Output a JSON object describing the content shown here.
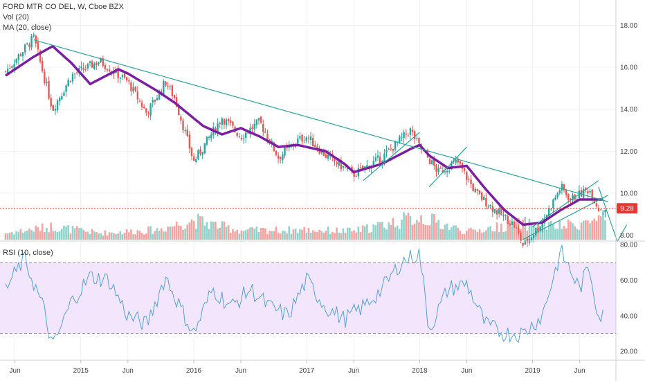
{
  "chart_data": {
    "type": "candlestick",
    "symbol_label": "FORD MTR CO DEL, W, Cboe BZX",
    "indicator_labels": [
      "Vol (20)",
      "MA (20, close)"
    ],
    "rsi_label": "RSI (10, close)",
    "x_tick_labels": [
      "Jun",
      "2015",
      "Jun",
      "2016",
      "Jun",
      "2017",
      "Jun",
      "2018",
      "Jun",
      "2019",
      "Jun"
    ],
    "price_axis": {
      "ticks": [
        "8.00",
        "10.00",
        "12.00",
        "14.00",
        "16.00",
        "18.00"
      ],
      "range": [
        6.5,
        19.2
      ]
    },
    "rsi_axis": {
      "ticks": [
        "20.00",
        "40.00",
        "60.00",
        "80.00"
      ],
      "range": [
        15,
        82
      ],
      "band": [
        30,
        70
      ]
    },
    "last_price_label": "9.28",
    "last_price": 9.28,
    "ma_anchor_points": [
      [
        "2014-05",
        15.6
      ],
      [
        "2014-08",
        16.5
      ],
      [
        "2014-10",
        17.0
      ],
      [
        "2014-12",
        16.2
      ],
      [
        "2015-02",
        15.2
      ],
      [
        "2015-05",
        15.9
      ],
      [
        "2015-06",
        15.7
      ],
      [
        "2015-09",
        14.9
      ],
      [
        "2015-11",
        14.3
      ],
      [
        "2016-02",
        13.2
      ],
      [
        "2016-04",
        12.8
      ],
      [
        "2016-06",
        13.1
      ],
      [
        "2016-08",
        12.7
      ],
      [
        "2016-10",
        12.2
      ],
      [
        "2016-12",
        12.3
      ],
      [
        "2017-03",
        12.0
      ],
      [
        "2017-05",
        11.4
      ],
      [
        "2017-06",
        11.0
      ],
      [
        "2017-09",
        11.4
      ],
      [
        "2017-12",
        12.1
      ],
      [
        "2018-01",
        12.3
      ],
      [
        "2018-02",
        11.8
      ],
      [
        "2018-04",
        11.2
      ],
      [
        "2018-06",
        11.3
      ],
      [
        "2018-08",
        10.2
      ],
      [
        "2018-10",
        9.2
      ],
      [
        "2018-12",
        8.5
      ],
      [
        "2019-02",
        8.6
      ],
      [
        "2019-04",
        9.2
      ],
      [
        "2019-06",
        9.7
      ],
      [
        "2019-08",
        9.7
      ]
    ],
    "close_anchor_points": [
      [
        "2014-05",
        15.8
      ],
      [
        "2014-08",
        17.4
      ],
      [
        "2014-10",
        14.0
      ],
      [
        "2014-12",
        15.6
      ],
      [
        "2015-03",
        16.3
      ],
      [
        "2015-06",
        15.3
      ],
      [
        "2015-08",
        13.8
      ],
      [
        "2015-10",
        15.3
      ],
      [
        "2015-11",
        14.5
      ],
      [
        "2016-01",
        11.5
      ],
      [
        "2016-04",
        13.6
      ],
      [
        "2016-06",
        12.7
      ],
      [
        "2016-08",
        13.4
      ],
      [
        "2016-10",
        11.7
      ],
      [
        "2016-12",
        12.5
      ],
      [
        "2017-01",
        12.7
      ],
      [
        "2017-03",
        11.8
      ],
      [
        "2017-06",
        10.9
      ],
      [
        "2017-09",
        11.7
      ],
      [
        "2017-12",
        13.0
      ],
      [
        "2018-01",
        12.2
      ],
      [
        "2018-03",
        11.0
      ],
      [
        "2018-05",
        11.5
      ],
      [
        "2018-07",
        10.0
      ],
      [
        "2018-09",
        9.2
      ],
      [
        "2018-11",
        8.5
      ],
      [
        "2018-12",
        7.5
      ],
      [
        "2019-02",
        8.6
      ],
      [
        "2019-04",
        10.3
      ],
      [
        "2019-05",
        9.7
      ],
      [
        "2019-07",
        10.2
      ],
      [
        "2019-08",
        9.28
      ]
    ],
    "rsi_anchor_points": [
      [
        "2014-05",
        55
      ],
      [
        "2014-07",
        72
      ],
      [
        "2014-09",
        45
      ],
      [
        "2014-10",
        22
      ],
      [
        "2014-12",
        48
      ],
      [
        "2015-02",
        62
      ],
      [
        "2015-04",
        60
      ],
      [
        "2015-06",
        40
      ],
      [
        "2015-08",
        35
      ],
      [
        "2015-10",
        62
      ],
      [
        "2015-12",
        40
      ],
      [
        "2016-01",
        30
      ],
      [
        "2016-03",
        55
      ],
      [
        "2016-05",
        45
      ],
      [
        "2016-07",
        55
      ],
      [
        "2016-09",
        45
      ],
      [
        "2016-11",
        40
      ],
      [
        "2017-01",
        60
      ],
      [
        "2017-03",
        45
      ],
      [
        "2017-05",
        38
      ],
      [
        "2017-07",
        45
      ],
      [
        "2017-09",
        55
      ],
      [
        "2017-11",
        70
      ],
      [
        "2018-01",
        75
      ],
      [
        "2018-02",
        32
      ],
      [
        "2018-04",
        55
      ],
      [
        "2018-06",
        58
      ],
      [
        "2018-08",
        35
      ],
      [
        "2018-10",
        30
      ],
      [
        "2018-12",
        30
      ],
      [
        "2019-02",
        40
      ],
      [
        "2019-04",
        76
      ],
      [
        "2019-06",
        55
      ],
      [
        "2019-07",
        68
      ],
      [
        "2019-08",
        40
      ]
    ],
    "volume_anchor_points": [
      [
        "2014-05",
        0.1
      ],
      [
        "2014-10",
        0.2
      ],
      [
        "2015-03",
        0.1
      ],
      [
        "2015-09",
        0.15
      ],
      [
        "2016-01",
        0.3
      ],
      [
        "2016-06",
        0.14
      ],
      [
        "2017-01",
        0.15
      ],
      [
        "2017-06",
        0.13
      ],
      [
        "2018-01",
        0.35
      ],
      [
        "2018-06",
        0.12
      ],
      [
        "2018-12",
        0.25
      ],
      [
        "2019-04",
        0.2
      ],
      [
        "2019-08",
        0.3
      ]
    ],
    "trendlines": [
      {
        "name": "descending resistance",
        "points": [
          [
            "2014-08",
            17.3
          ],
          [
            "2019-09",
            9.6
          ]
        ]
      },
      {
        "name": "rising channel upper",
        "points": [
          [
            "2019-01",
            8.4
          ],
          [
            "2019-08",
            10.6
          ]
        ]
      },
      {
        "name": "rising channel lower",
        "points": [
          [
            "2018-12",
            7.8
          ],
          [
            "2019-09",
            9.9
          ]
        ]
      },
      {
        "name": "projection",
        "points": [
          [
            "2019-08",
            10.3
          ],
          [
            "2019-10",
            7.7
          ]
        ]
      },
      {
        "name": "projection rebound",
        "points": [
          [
            "2019-10",
            7.7
          ],
          [
            "2019-11",
            8.5
          ]
        ]
      },
      {
        "name": "2017 channel",
        "points": [
          [
            "2017-07",
            10.6
          ],
          [
            "2018-01",
            12.9
          ]
        ]
      },
      {
        "name": "2018 channel",
        "points": [
          [
            "2018-02",
            10.3
          ],
          [
            "2018-06",
            12.2
          ]
        ]
      }
    ],
    "colors": {
      "up": "#26a69a",
      "down": "#ef5350",
      "up_volume": "#8fd3cb",
      "down_volume": "#f5a3a1",
      "ma": "#7b1fa2",
      "rsi": "#4fa3d9",
      "trend": "#26a69a",
      "last_price": "#e53935",
      "rsi_band": "#f3e5fb"
    }
  }
}
